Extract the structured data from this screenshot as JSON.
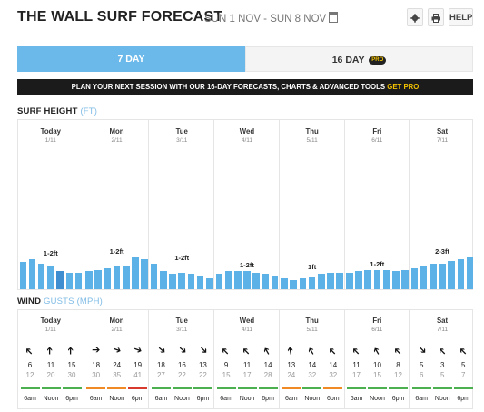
{
  "header": {
    "title": "THE WALL SURF FORECAST",
    "dates": "SUN 1 NOV - SUN 8 NOV",
    "buttons": {
      "settings_icon": "gear-icon",
      "print_icon": "printer-icon",
      "help": "HELP"
    }
  },
  "tabs": {
    "seven_day": "7 DAY",
    "sixteen_day": "16 DAY",
    "pro_badge": "PRO"
  },
  "promo": {
    "text": "PLAN YOUR NEXT SESSION WITH OUR 16-DAY FORECASTS, CHARTS & ADVANCED TOOLS",
    "cta": "GET PRO"
  },
  "surf": {
    "title": "SURF HEIGHT",
    "unit": "(FT)"
  },
  "wind": {
    "title": "WIND",
    "gusts": "GUSTS",
    "unit": "(MPH)"
  },
  "days": [
    {
      "name": "Today",
      "date": "1/11",
      "surf_range": "1-2ft"
    },
    {
      "name": "Mon",
      "date": "2/11",
      "surf_range": "1-2ft"
    },
    {
      "name": "Tue",
      "date": "3/11",
      "surf_range": "1-2ft"
    },
    {
      "name": "Wed",
      "date": "4/11",
      "surf_range": "1-2ft"
    },
    {
      "name": "Thu",
      "date": "5/11",
      "surf_range": "1ft"
    },
    {
      "name": "Fri",
      "date": "6/11",
      "surf_range": "1-2ft"
    },
    {
      "name": "Sat",
      "date": "7/11",
      "surf_range": "2-3ft"
    }
  ],
  "surf_bar_levels": [
    0.9,
    1.0,
    0.85,
    0.75,
    0.6,
    0.55,
    0.55,
    0.6,
    0.65,
    0.7,
    0.75,
    0.8,
    1.05,
    1.0,
    0.85,
    0.6,
    0.5,
    0.55,
    0.5,
    0.45,
    0.35,
    0.5,
    0.6,
    0.6,
    0.6,
    0.55,
    0.5,
    0.45,
    0.35,
    0.3,
    0.35,
    0.4,
    0.5,
    0.55,
    0.55,
    0.55,
    0.6,
    0.65,
    0.65,
    0.65,
    0.6,
    0.65,
    0.7,
    0.8,
    0.85,
    0.85,
    0.95,
    1.0,
    1.05
  ],
  "surf_bar_dark_index": 4,
  "times": [
    "6am",
    "Noon",
    "6pm"
  ],
  "wind_slots": [
    {
      "speed": "6",
      "gust": "12",
      "rating": "green",
      "angle": -135
    },
    {
      "speed": "11",
      "gust": "20",
      "rating": "green",
      "angle": -90
    },
    {
      "speed": "15",
      "gust": "30",
      "rating": "green",
      "angle": -90
    },
    {
      "speed": "18",
      "gust": "30",
      "rating": "orange",
      "angle": 0
    },
    {
      "speed": "24",
      "gust": "35",
      "rating": "orange",
      "angle": 20
    },
    {
      "speed": "19",
      "gust": "41",
      "rating": "red",
      "angle": 20
    },
    {
      "speed": "18",
      "gust": "27",
      "rating": "green",
      "angle": 40
    },
    {
      "speed": "16",
      "gust": "22",
      "rating": "green",
      "angle": 40
    },
    {
      "speed": "13",
      "gust": "22",
      "rating": "green",
      "angle": 45
    },
    {
      "speed": "9",
      "gust": "15",
      "rating": "green",
      "angle": -135
    },
    {
      "speed": "11",
      "gust": "17",
      "rating": "green",
      "angle": -135
    },
    {
      "speed": "14",
      "gust": "28",
      "rating": "green",
      "angle": -120
    },
    {
      "speed": "13",
      "gust": "24",
      "rating": "orange",
      "angle": -100
    },
    {
      "speed": "14",
      "gust": "32",
      "rating": "green",
      "angle": -120
    },
    {
      "speed": "14",
      "gust": "32",
      "rating": "orange",
      "angle": -135
    },
    {
      "speed": "11",
      "gust": "17",
      "rating": "green",
      "angle": -135
    },
    {
      "speed": "10",
      "gust": "15",
      "rating": "green",
      "angle": -120
    },
    {
      "speed": "8",
      "gust": "12",
      "rating": "green",
      "angle": -135
    },
    {
      "speed": "5",
      "gust": "6",
      "rating": "green",
      "angle": 45
    },
    {
      "speed": "3",
      "gust": "5",
      "rating": "green",
      "angle": -135
    },
    {
      "speed": "5",
      "gust": "7",
      "rating": "green",
      "angle": -135
    }
  ],
  "colors": {
    "bar": "#5cb1e6",
    "bar_dark": "#3f8fd0",
    "green": "#4caf50",
    "orange": "#f08a24",
    "red": "#d83a2e",
    "accent": "#6bb8ea",
    "cta": "#f2c200"
  }
}
